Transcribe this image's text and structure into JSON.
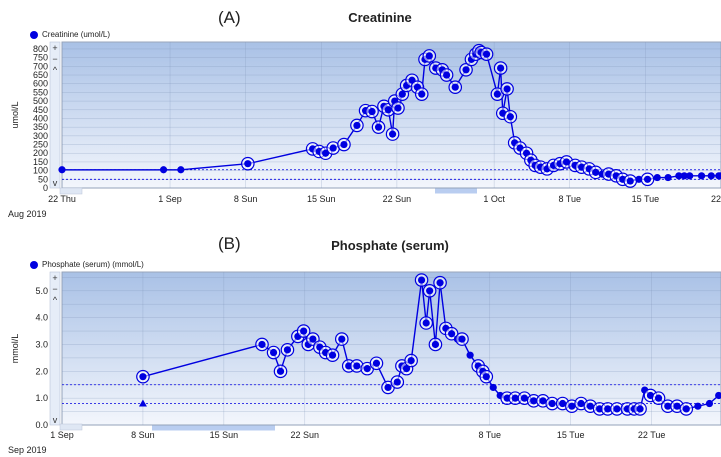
{
  "charts": [
    {
      "panel": "(A)",
      "title": "Creatinine",
      "legend": "Creatinine (umol/L)"
    },
    {
      "panel": "(B)",
      "title": "Phosphate (serum)",
      "legend": "Phosphate (serum) (mmol/L)"
    }
  ],
  "colors": {
    "series": "#0000e0",
    "plot_top": "#a9c1e6",
    "plot_bottom": "#f3f6fc",
    "grid": "#7f93b8"
  },
  "chart_data": [
    {
      "type": "line",
      "title": "Creatinine",
      "ylabel": "umol/L",
      "x_unit": "day of year 2019",
      "x_tick_labels": [
        "22 Thu",
        "1 Sep",
        "8 Sun",
        "15 Sun",
        "22 Sun",
        "1 Oct",
        "8 Tue",
        "15 Tue",
        "22"
      ],
      "x_tick_values": [
        234,
        244,
        251,
        258,
        265,
        274,
        281,
        288,
        295
      ],
      "x_period_label": "Aug 2019",
      "xlim": [
        234,
        295
      ],
      "ylim": [
        0,
        840
      ],
      "y_ticks": [
        0,
        50,
        100,
        150,
        200,
        250,
        300,
        350,
        400,
        450,
        500,
        550,
        600,
        650,
        700,
        750,
        800
      ],
      "reference_lines": [
        50,
        105
      ],
      "series": [
        {
          "name": "Creatinine (umol/L)",
          "x": [
            234,
            243.4,
            245,
            251.2,
            257.2,
            257.8,
            258.4,
            259.1,
            260.1,
            261.3,
            262.1,
            262.7,
            263.3,
            263.8,
            264.2,
            264.6,
            264.8,
            265.1,
            265.5,
            265.9,
            266.4,
            266.9,
            267.3,
            267.6,
            268,
            268.6,
            269.2,
            269.6,
            270.4,
            271.4,
            271.9,
            272.3,
            272.6,
            272.8,
            273.3,
            274.3,
            274.6,
            274.8,
            275.2,
            275.5,
            275.9,
            276.4,
            277,
            277.4,
            277.8,
            278.3,
            278.9,
            279.5,
            280.1,
            280.7,
            281.5,
            282.1,
            282.8,
            283.4,
            284,
            284.6,
            285.3,
            285.9,
            286.6,
            287.4,
            288.2,
            289.1,
            290.1,
            291.1,
            291.6,
            292.1,
            293.2,
            294.1,
            294.8,
            295
          ],
          "y": [
            105,
            105,
            105,
            140,
            225,
            210,
            200,
            230,
            250,
            360,
            445,
            440,
            350,
            470,
            450,
            310,
            500,
            460,
            540,
            590,
            620,
            580,
            540,
            740,
            760,
            690,
            680,
            650,
            580,
            680,
            740,
            770,
            790,
            780,
            770,
            540,
            690,
            430,
            570,
            410,
            260,
            230,
            200,
            160,
            130,
            120,
            110,
            130,
            140,
            150,
            130,
            120,
            110,
            90,
            80,
            80,
            70,
            50,
            40,
            50,
            50,
            60,
            60,
            70,
            70,
            70,
            70,
            70,
            70,
            70
          ],
          "circled": [
            false,
            false,
            false,
            true,
            true,
            true,
            true,
            true,
            true,
            true,
            true,
            true,
            true,
            true,
            true,
            true,
            true,
            true,
            true,
            true,
            true,
            true,
            true,
            true,
            true,
            true,
            true,
            true,
            true,
            true,
            true,
            true,
            true,
            true,
            true,
            true,
            true,
            true,
            true,
            true,
            true,
            true,
            true,
            true,
            true,
            true,
            true,
            true,
            true,
            true,
            true,
            true,
            true,
            true,
            false,
            true,
            true,
            true,
            true,
            false,
            true,
            false,
            false,
            false,
            false,
            false,
            false,
            false,
            false,
            false
          ]
        }
      ]
    },
    {
      "type": "line",
      "title": "Phosphate (serum)",
      "ylabel": "mmol/L",
      "x_unit": "day of year 2019",
      "x_tick_labels": [
        "1 Sep",
        "8 Sun",
        "15 Sun",
        "22 Sun",
        "8 Tue",
        "15 Tue",
        "22 Tue"
      ],
      "x_tick_values": [
        244,
        251,
        258,
        265,
        281,
        288,
        295
      ],
      "x_period_label": "Sep 2019",
      "xlim": [
        244,
        301
      ],
      "ylim": [
        0,
        5.7
      ],
      "y_ticks": [
        0,
        0.5,
        1.0,
        1.5,
        2.0,
        2.5,
        3.0,
        3.5,
        4.0,
        4.5,
        5.0,
        5.5
      ],
      "y_tick_labels": [
        "0.0",
        "",
        "1.0",
        "",
        "2.0",
        "",
        "3.0",
        "",
        "4.0",
        "",
        "5.0",
        ""
      ],
      "reference_lines": [
        0.8,
        1.5
      ],
      "marker_point": {
        "x": 251,
        "y": 0.8
      },
      "series": [
        {
          "name": "Phosphate (serum) (mmol/L)",
          "x": [
            251,
            261.3,
            262.3,
            262.9,
            263.5,
            264.4,
            264.9,
            265.3,
            265.7,
            266.3,
            266.8,
            267.4,
            268.2,
            268.8,
            269.5,
            270.4,
            271.2,
            272.2,
            273,
            273.4,
            273.8,
            274.2,
            275.1,
            275.5,
            275.8,
            276.3,
            276.7,
            277.2,
            277.7,
            278.2,
            278.6,
            279.3,
            280,
            280.4,
            280.7,
            281.3,
            281.9,
            282.5,
            283.2,
            284,
            284.8,
            285.6,
            286.4,
            287.3,
            288.1,
            288.9,
            289.7,
            290.5,
            291.2,
            292,
            292.9,
            293.5,
            294,
            294.4,
            294.9,
            295.6,
            296.4,
            297.2,
            298,
            299,
            300,
            300.8
          ],
          "y": [
            1.8,
            3.0,
            2.7,
            2.0,
            2.8,
            3.3,
            3.5,
            3.0,
            3.2,
            2.9,
            2.7,
            2.6,
            3.2,
            2.2,
            2.2,
            2.1,
            2.3,
            1.4,
            1.6,
            2.2,
            2.1,
            2.4,
            5.4,
            3.8,
            5.0,
            3.0,
            5.3,
            3.6,
            3.4,
            3.2,
            3.2,
            2.6,
            2.2,
            2.0,
            1.8,
            1.4,
            1.1,
            1.0,
            1.0,
            1.0,
            0.9,
            0.9,
            0.8,
            0.8,
            0.7,
            0.8,
            0.7,
            0.6,
            0.6,
            0.6,
            0.6,
            0.6,
            0.6,
            1.3,
            1.1,
            1.0,
            0.7,
            0.7,
            0.6,
            0.7,
            0.8,
            1.1
          ],
          "circled": [
            true,
            true,
            true,
            true,
            true,
            true,
            true,
            true,
            true,
            true,
            true,
            true,
            true,
            true,
            true,
            true,
            true,
            true,
            true,
            true,
            true,
            true,
            true,
            true,
            true,
            true,
            true,
            true,
            true,
            false,
            true,
            false,
            true,
            true,
            true,
            false,
            false,
            true,
            true,
            true,
            true,
            true,
            true,
            true,
            true,
            true,
            true,
            true,
            true,
            true,
            true,
            true,
            true,
            false,
            true,
            true,
            true,
            true,
            true,
            false,
            false,
            false
          ]
        }
      ]
    }
  ]
}
